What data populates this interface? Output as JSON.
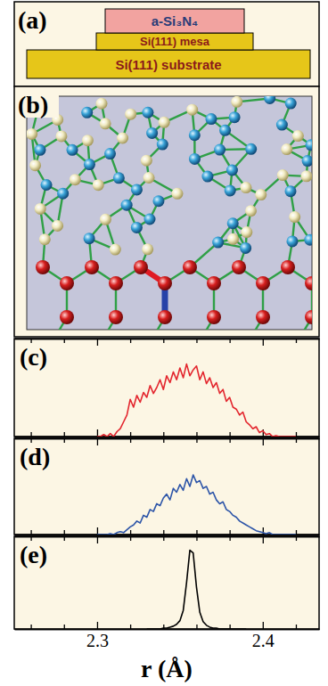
{
  "panels": [
    {
      "panel_label": "(a)",
      "layers": [
        "a-Si₃N₄",
        "Si(111) mesa",
        "Si(111) substrate"
      ]
    },
    {
      "panel_label": "(b)"
    }
  ],
  "chart_data": [
    {
      "type": "line",
      "panel_label": "(c)",
      "color": "#e3262e",
      "x": [
        2.3,
        2.302,
        2.304,
        2.306,
        2.308,
        2.31,
        2.312,
        2.314,
        2.316,
        2.318,
        2.32,
        2.322,
        2.324,
        2.326,
        2.328,
        2.33,
        2.332,
        2.334,
        2.336,
        2.338,
        2.34,
        2.342,
        2.344,
        2.346,
        2.348,
        2.35,
        2.352,
        2.354,
        2.356,
        2.358,
        2.36,
        2.362,
        2.364,
        2.366,
        2.368,
        2.37,
        2.372,
        2.374,
        2.376,
        2.378,
        2.38,
        2.382,
        2.384,
        2.386,
        2.388,
        2.39,
        2.392,
        2.394,
        2.396,
        2.398,
        2.4,
        2.402,
        2.404,
        2.406,
        2.408,
        2.41,
        2.412,
        2.414,
        2.416,
        2.418,
        2.42
      ],
      "values": [
        0,
        0,
        2,
        0,
        3,
        0,
        5,
        8,
        15,
        22,
        38,
        30,
        42,
        35,
        45,
        40,
        52,
        44,
        50,
        58,
        48,
        62,
        55,
        66,
        58,
        70,
        60,
        74,
        62,
        68,
        72,
        58,
        66,
        54,
        60,
        50,
        55,
        44,
        48,
        36,
        40,
        30,
        28,
        22,
        25,
        15,
        12,
        8,
        10,
        4,
        6,
        2,
        3,
        0,
        1,
        0,
        0,
        0,
        0,
        0,
        0
      ],
      "xlim": [
        2.25,
        2.434
      ],
      "ylim": [
        0,
        100
      ],
      "xticks": [
        2.3,
        2.4
      ],
      "minor_xticks": [
        2.26,
        2.28,
        2.32,
        2.34,
        2.36,
        2.38,
        2.42
      ],
      "tick_labels": false
    },
    {
      "type": "line",
      "panel_label": "(d)",
      "color": "#2d55a8",
      "x": [
        2.3,
        2.302,
        2.304,
        2.306,
        2.308,
        2.31,
        2.312,
        2.314,
        2.316,
        2.318,
        2.32,
        2.322,
        2.324,
        2.326,
        2.328,
        2.33,
        2.332,
        2.334,
        2.336,
        2.338,
        2.34,
        2.342,
        2.344,
        2.346,
        2.348,
        2.35,
        2.352,
        2.354,
        2.356,
        2.358,
        2.36,
        2.362,
        2.364,
        2.366,
        2.368,
        2.37,
        2.372,
        2.374,
        2.376,
        2.378,
        2.38,
        2.382,
        2.384,
        2.386,
        2.388,
        2.39,
        2.392,
        2.394,
        2.396,
        2.398,
        2.4,
        2.402,
        2.404,
        2.406,
        2.408,
        2.41,
        2.412,
        2.414,
        2.416,
        2.418,
        2.42
      ],
      "values": [
        0,
        0,
        0,
        0,
        1,
        0,
        2,
        3,
        2,
        5,
        8,
        10,
        14,
        12,
        20,
        18,
        26,
        24,
        32,
        30,
        38,
        42,
        36,
        48,
        44,
        52,
        46,
        58,
        50,
        62,
        54,
        56,
        48,
        50,
        42,
        44,
        36,
        32,
        34,
        26,
        24,
        20,
        18,
        14,
        12,
        10,
        8,
        6,
        4,
        3,
        2,
        1,
        2,
        0,
        0,
        0,
        0,
        0,
        0,
        0,
        0
      ],
      "xlim": [
        2.25,
        2.434
      ],
      "ylim": [
        0,
        100
      ],
      "xticks": [
        2.3,
        2.4
      ],
      "minor_xticks": [
        2.26,
        2.28,
        2.32,
        2.34,
        2.36,
        2.38,
        2.42
      ],
      "tick_labels": false
    },
    {
      "type": "line",
      "panel_label": "(e)",
      "color": "#000000",
      "x": [
        2.33,
        2.332,
        2.334,
        2.336,
        2.338,
        2.34,
        2.342,
        2.344,
        2.346,
        2.348,
        2.35,
        2.352,
        2.354,
        2.356,
        2.358,
        2.36,
        2.362,
        2.364,
        2.366,
        2.368,
        2.37,
        2.372,
        2.374,
        2.376,
        2.378,
        2.38,
        2.382,
        2.384,
        2.386,
        2.388,
        2.39
      ],
      "values": [
        0,
        0,
        0,
        0,
        0,
        1,
        1,
        2,
        3,
        5,
        9,
        20,
        50,
        85,
        82,
        45,
        18,
        8,
        4,
        2,
        1,
        1,
        0,
        0,
        0,
        0,
        0,
        0,
        0,
        0,
        0
      ],
      "xlim": [
        2.25,
        2.434
      ],
      "ylim": [
        0,
        100
      ],
      "xticks": [
        2.3,
        2.4
      ],
      "minor_xticks": [
        2.26,
        2.28,
        2.32,
        2.34,
        2.36,
        2.38,
        2.42
      ],
      "tick_labels": "x",
      "xlabel": "r (Å)"
    }
  ]
}
